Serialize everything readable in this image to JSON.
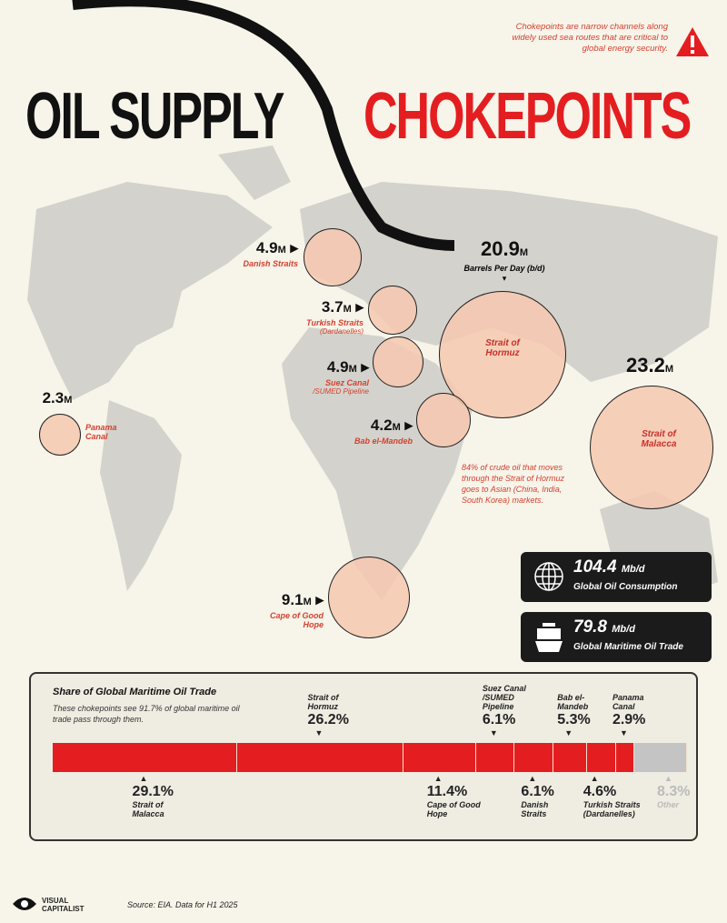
{
  "title": {
    "part1": "OIL SUPPLY",
    "part2": "CHOKEPOINTS"
  },
  "note": "Chokepoints are narrow channels along widely used sea routes that are critical to global energy security.",
  "icons": {
    "warning": "warning-triangle-icon",
    "globe": "globe-icon",
    "ship": "tanker-ship-icon"
  },
  "colors": {
    "accent": "#e41e20",
    "dark": "#1b1b1b",
    "other": "#c4c4c4",
    "circle": "#f6c8af"
  },
  "chokepoints": [
    {
      "name": "Danish Straits",
      "value": "4.9",
      "unit": "M"
    },
    {
      "name": "Turkish Straits",
      "sub": "(Dardanelles)",
      "value": "3.7",
      "unit": "M"
    },
    {
      "name": "Suez Canal",
      "sub": "/SUMED Pipeline",
      "value": "4.9",
      "unit": "M"
    },
    {
      "name": "Strait of Hormuz",
      "value": "20.9",
      "unit": "M",
      "sub": "Barrels Per Day (b/d)"
    },
    {
      "name": "Bab el-Mandeb",
      "value": "4.2",
      "unit": "M"
    },
    {
      "name": "Panama Canal",
      "value": "2.3",
      "unit": "M"
    },
    {
      "name": "Strait of Malacca",
      "value": "23.2",
      "unit": "M"
    },
    {
      "name": "Cape of Good Hope",
      "value": "9.1",
      "unit": "M"
    }
  ],
  "hormuz_note": "84% of crude oil that moves through the Strait of Hormuz goes to Asian (China, India, South Korea) markets.",
  "stats": [
    {
      "value": "104.4",
      "unit": "Mb/d",
      "label": "Global Oil Consumption"
    },
    {
      "value": "79.8",
      "unit": "Mb/d",
      "label": "Global Maritime Oil Trade"
    }
  ],
  "chart_data": {
    "type": "bar",
    "title": "Share of Global Maritime Oil Trade",
    "subtitle": "These chokepoints see 91.7% of global maritime oil trade pass through them.",
    "categories": [
      "Strait of Malacca",
      "Strait of Hormuz",
      "Cape of Good Hope",
      "Suez Canal /SUMED Pipeline",
      "Danish Straits",
      "Bab el-Mandeb",
      "Turkish Straits (Dardanelles)",
      "Panama Canal",
      "Other"
    ],
    "values": [
      29.1,
      26.2,
      11.4,
      6.1,
      6.1,
      5.3,
      4.6,
      2.9,
      8.3
    ],
    "labels": [
      "29.1%",
      "26.2%",
      "11.4%",
      "6.1%",
      "6.1%",
      "5.3%",
      "4.6%",
      "2.9%",
      "8.3%"
    ],
    "stacked": true,
    "unit": "%"
  },
  "footer": {
    "brand": "VISUAL CAPITALIST",
    "source": "Source: EIA. Data for H1 2025"
  }
}
